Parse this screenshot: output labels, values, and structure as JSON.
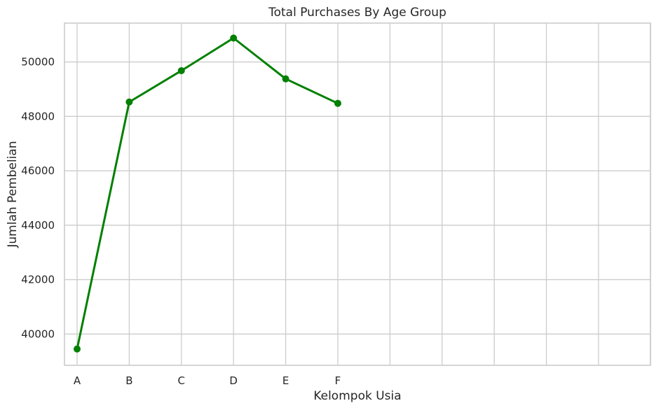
{
  "chart_data": {
    "type": "line",
    "title": "Total Purchases By Age Group",
    "xlabel": "Kelompok Usia",
    "ylabel": "Jumlah Pembelian",
    "categories": [
      "A",
      "B",
      "C",
      "D",
      "E",
      "F"
    ],
    "series": [
      {
        "values": [
          39450,
          48530,
          49680,
          50880,
          49380,
          48480
        ],
        "color": "#008000"
      }
    ],
    "ylim": [
      38850,
      51430
    ],
    "yticks": [
      40000,
      42000,
      44000,
      46000,
      48000,
      50000
    ],
    "x_slots": 12,
    "grid": true,
    "marker": "circle"
  }
}
